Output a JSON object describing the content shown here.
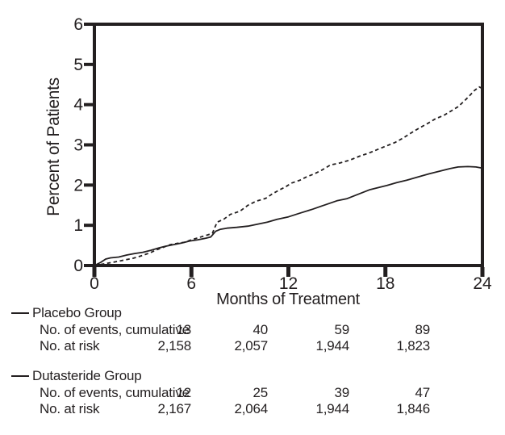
{
  "chart_data": {
    "type": "line",
    "title": "",
    "xlabel": "Months of Treatment",
    "ylabel": "Percent of Patients",
    "xlim": [
      0,
      24
    ],
    "ylim": [
      0,
      6
    ],
    "x_ticks": [
      0,
      6,
      12,
      18,
      24
    ],
    "y_ticks": [
      0,
      1,
      2,
      3,
      4,
      5,
      6
    ],
    "grid": false,
    "frame": "full-box",
    "series": [
      {
        "name": "Placebo Group",
        "style": "dashed",
        "points": [
          [
            0,
            0
          ],
          [
            0.3,
            0.02
          ],
          [
            0.6,
            0.04
          ],
          [
            1.0,
            0.07
          ],
          [
            1.4,
            0.1
          ],
          [
            1.9,
            0.14
          ],
          [
            2.4,
            0.18
          ],
          [
            2.9,
            0.24
          ],
          [
            3.4,
            0.31
          ],
          [
            3.9,
            0.4
          ],
          [
            4.3,
            0.46
          ],
          [
            4.7,
            0.52
          ],
          [
            5.1,
            0.55
          ],
          [
            5.6,
            0.58
          ],
          [
            6.0,
            0.64
          ],
          [
            6.5,
            0.7
          ],
          [
            7.0,
            0.76
          ],
          [
            7.3,
            0.8
          ],
          [
            7.45,
            0.95
          ],
          [
            7.6,
            1.08
          ],
          [
            8.0,
            1.15
          ],
          [
            8.4,
            1.27
          ],
          [
            9.0,
            1.35
          ],
          [
            9.5,
            1.5
          ],
          [
            10.0,
            1.6
          ],
          [
            10.6,
            1.67
          ],
          [
            11.0,
            1.78
          ],
          [
            11.4,
            1.87
          ],
          [
            11.8,
            1.95
          ],
          [
            12.2,
            2.05
          ],
          [
            12.7,
            2.12
          ],
          [
            13.1,
            2.2
          ],
          [
            13.6,
            2.28
          ],
          [
            14.1,
            2.38
          ],
          [
            14.6,
            2.5
          ],
          [
            15.2,
            2.55
          ],
          [
            15.8,
            2.62
          ],
          [
            16.4,
            2.72
          ],
          [
            17.0,
            2.8
          ],
          [
            17.6,
            2.9
          ],
          [
            18.1,
            2.98
          ],
          [
            18.6,
            3.06
          ],
          [
            19.1,
            3.17
          ],
          [
            19.6,
            3.3
          ],
          [
            20.1,
            3.42
          ],
          [
            20.6,
            3.53
          ],
          [
            21.1,
            3.65
          ],
          [
            21.6,
            3.73
          ],
          [
            22.1,
            3.85
          ],
          [
            22.5,
            3.95
          ],
          [
            22.9,
            4.1
          ],
          [
            23.2,
            4.22
          ],
          [
            23.5,
            4.35
          ],
          [
            23.8,
            4.44
          ],
          [
            24,
            4.4
          ]
        ]
      },
      {
        "name": "Dutasteride Group",
        "style": "solid",
        "points": [
          [
            0,
            0
          ],
          [
            0.4,
            0.08
          ],
          [
            0.7,
            0.16
          ],
          [
            1.0,
            0.19
          ],
          [
            1.5,
            0.21
          ],
          [
            2.0,
            0.26
          ],
          [
            2.5,
            0.3
          ],
          [
            3.0,
            0.33
          ],
          [
            3.5,
            0.38
          ],
          [
            4.0,
            0.44
          ],
          [
            4.4,
            0.48
          ],
          [
            4.9,
            0.52
          ],
          [
            5.4,
            0.56
          ],
          [
            5.9,
            0.61
          ],
          [
            6.4,
            0.64
          ],
          [
            6.9,
            0.68
          ],
          [
            7.2,
            0.71
          ],
          [
            7.5,
            0.85
          ],
          [
            7.8,
            0.9
          ],
          [
            8.2,
            0.93
          ],
          [
            8.8,
            0.95
          ],
          [
            9.5,
            0.98
          ],
          [
            10.1,
            1.03
          ],
          [
            10.7,
            1.08
          ],
          [
            11.3,
            1.15
          ],
          [
            12.0,
            1.21
          ],
          [
            12.7,
            1.3
          ],
          [
            13.5,
            1.4
          ],
          [
            14.2,
            1.5
          ],
          [
            15.0,
            1.61
          ],
          [
            15.6,
            1.66
          ],
          [
            16.3,
            1.77
          ],
          [
            17.0,
            1.88
          ],
          [
            17.6,
            1.94
          ],
          [
            18.1,
            1.99
          ],
          [
            18.7,
            2.06
          ],
          [
            19.3,
            2.12
          ],
          [
            20.0,
            2.2
          ],
          [
            20.7,
            2.28
          ],
          [
            21.4,
            2.35
          ],
          [
            22.0,
            2.41
          ],
          [
            22.5,
            2.45
          ],
          [
            23.1,
            2.46
          ],
          [
            23.6,
            2.45
          ],
          [
            24,
            2.42
          ]
        ]
      }
    ]
  },
  "legend_table": {
    "groups": [
      {
        "name": "Placebo Group",
        "rows": [
          {
            "label": "No. of events, cumulative",
            "values": [
              "13",
              "40",
              "59",
              "89"
            ]
          },
          {
            "label": "No. at risk",
            "values": [
              "2,158",
              "2,057",
              "1,944",
              "1,823"
            ]
          }
        ]
      },
      {
        "name": "Dutasteride Group",
        "rows": [
          {
            "label": "No. of events, cumulative",
            "values": [
              "12",
              "25",
              "39",
              "47"
            ]
          },
          {
            "label": "No. at risk",
            "values": [
              "2,167",
              "2,064",
              "1,944",
              "1,846"
            ]
          }
        ]
      }
    ]
  },
  "colors": {
    "ink": "#231f20",
    "background": "#ffffff"
  }
}
